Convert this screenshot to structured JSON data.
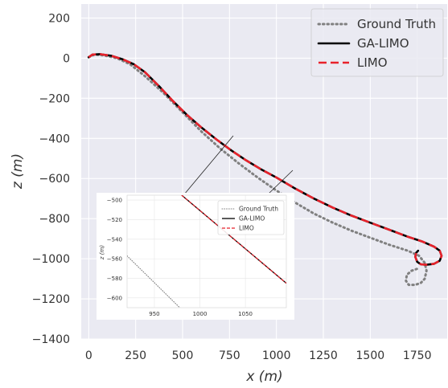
{
  "chart_data": {
    "type": "line",
    "title": "",
    "xlabel": "x (m)",
    "ylabel": "z (m)",
    "xlim": [
      -40,
      1910
    ],
    "ylim": [
      -1400,
      270
    ],
    "xticks": [
      0,
      250,
      500,
      750,
      1000,
      1250,
      1500,
      1750
    ],
    "yticks": [
      200,
      0,
      -200,
      -400,
      -600,
      -800,
      -1000,
      -1200,
      -1400
    ],
    "grid": true,
    "legend": "top-right",
    "series": [
      {
        "name": "Ground Truth",
        "style": "dotted",
        "color": "#808080",
        "x": [
          0,
          30,
          80,
          150,
          220,
          300,
          400,
          500,
          600,
          700,
          800,
          900,
          1000,
          1100,
          1200,
          1300,
          1400,
          1500,
          1600,
          1700,
          1760,
          1790,
          1800,
          1790,
          1770,
          1740,
          1705,
          1690,
          1695,
          1720,
          1750
        ],
        "y": [
          5,
          18,
          14,
          0,
          -30,
          -90,
          -175,
          -270,
          -365,
          -450,
          -525,
          -595,
          -660,
          -720,
          -775,
          -820,
          -860,
          -895,
          -930,
          -960,
          -985,
          -1020,
          -1060,
          -1100,
          -1120,
          -1130,
          -1130,
          -1110,
          -1080,
          -1060,
          -1050
        ]
      },
      {
        "name": "GA-LIMO",
        "style": "solid",
        "color": "#000000",
        "x": [
          0,
          20,
          60,
          120,
          180,
          240,
          300,
          380,
          450,
          520,
          600,
          680,
          760,
          840,
          920,
          1000,
          1100,
          1200,
          1300,
          1400,
          1500,
          1600,
          1700,
          1780,
          1840,
          1870,
          1880,
          1870,
          1840,
          1800,
          1770,
          1750,
          1740,
          1745,
          1755
        ],
        "y": [
          5,
          18,
          20,
          12,
          -5,
          -30,
          -70,
          -145,
          -215,
          -280,
          -345,
          -405,
          -460,
          -510,
          -555,
          -595,
          -650,
          -700,
          -745,
          -785,
          -820,
          -855,
          -890,
          -915,
          -940,
          -960,
          -985,
          -1010,
          -1025,
          -1030,
          -1028,
          -1015,
          -990,
          -970,
          -960
        ]
      },
      {
        "name": "LIMO",
        "style": "dashed",
        "color": "#e8222b",
        "x": [
          0,
          20,
          60,
          120,
          180,
          240,
          300,
          380,
          450,
          520,
          600,
          680,
          760,
          840,
          920,
          1000,
          1100,
          1200,
          1300,
          1400,
          1500,
          1600,
          1700,
          1780,
          1840,
          1870,
          1880,
          1870,
          1840,
          1800,
          1770,
          1750,
          1740,
          1745,
          1755
        ],
        "y": [
          5,
          18,
          20,
          12,
          -5,
          -30,
          -70,
          -145,
          -215,
          -280,
          -345,
          -405,
          -460,
          -510,
          -555,
          -595,
          -650,
          -700,
          -745,
          -785,
          -820,
          -855,
          -890,
          -915,
          -940,
          -960,
          -985,
          -1010,
          -1025,
          -1030,
          -1028,
          -1015,
          -990,
          -970,
          -960
        ]
      }
    ],
    "inset": {
      "xlim": [
        920,
        1095
      ],
      "ylim": [
        -610,
        -495
      ],
      "xticks": [
        950,
        1000,
        1050
      ],
      "yticks": [
        -500,
        -520,
        -540,
        -560,
        -580,
        -600
      ],
      "ylabel": "z (m)",
      "series": [
        {
          "name": "Ground Truth",
          "x": [
            920,
            990
          ],
          "y": [
            -557,
            -621
          ]
        },
        {
          "name": "GA-LIMO",
          "x": [
            980,
            1095
          ],
          "y": [
            -495,
            -585
          ]
        },
        {
          "name": "LIMO",
          "x": [
            980,
            1095
          ],
          "y": [
            -495,
            -585
          ]
        }
      ]
    }
  }
}
